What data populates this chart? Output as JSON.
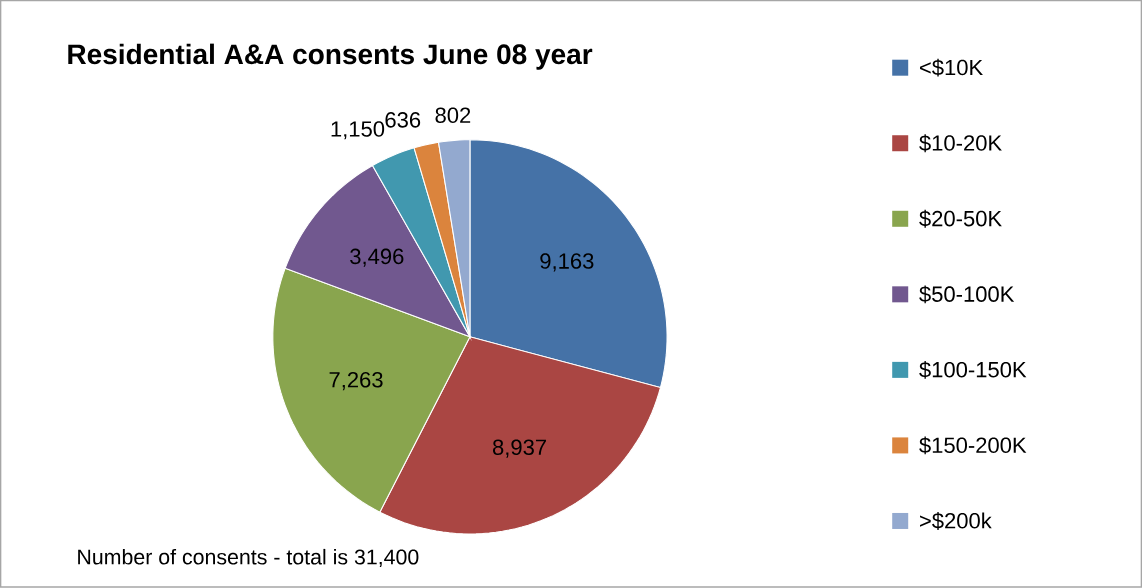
{
  "chart_data": {
    "type": "pie",
    "title": "Residential A&A consents June 08 year",
    "categories": [
      "<$10K",
      "$10-20K",
      "$20-50K",
      "$50-100K",
      "$100-150K",
      "$150-200K",
      ">$200k"
    ],
    "values": [
      9163,
      8937,
      7263,
      3496,
      1150,
      636,
      802
    ],
    "colors": [
      "#4572a7",
      "#aa4643",
      "#89a54e",
      "#71588f",
      "#4198af",
      "#db843d",
      "#93a9cf"
    ],
    "value_labels": [
      "9,163",
      "8,937",
      "7,263",
      "3,496",
      "1,150",
      "636",
      "802"
    ],
    "legend": "right",
    "annotations": [
      "Number of consents - total is 31,400"
    ]
  }
}
